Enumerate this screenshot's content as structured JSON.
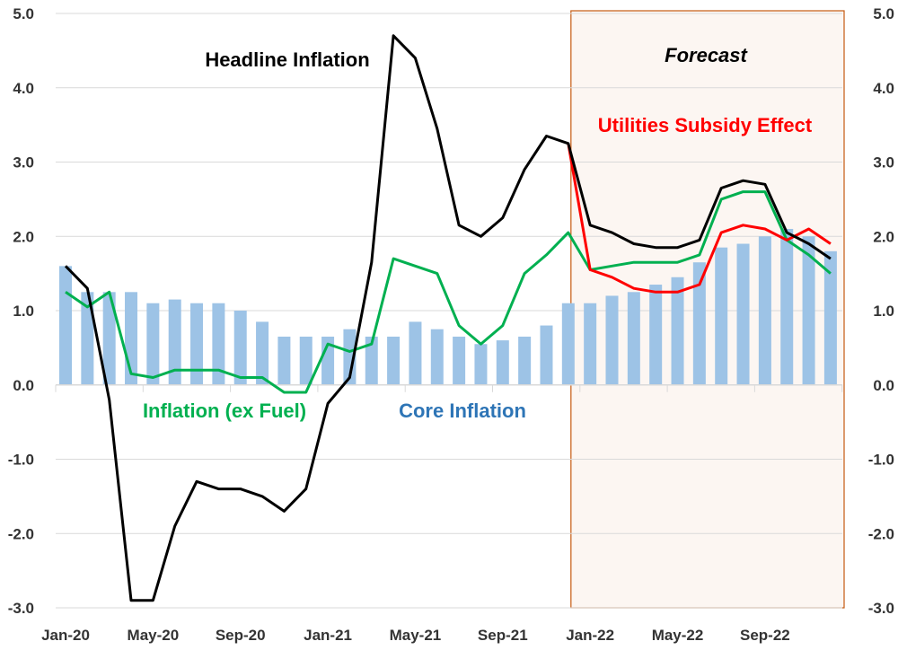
{
  "chart_data": {
    "type": "bar+line",
    "title": "",
    "ylim": [
      -3,
      5
    ],
    "yticks": [
      "5.0",
      "4.0",
      "3.0",
      "2.0",
      "1.0",
      "0.0",
      "-1.0",
      "-2.0",
      "-3.0"
    ],
    "ytick_values": [
      5,
      4,
      3,
      2,
      1,
      0,
      -1,
      -2,
      -3
    ],
    "xtick_labels": [
      "Jan-20",
      "May-20",
      "Sep-20",
      "Jan-21",
      "May-21",
      "Sep-21",
      "Jan-22",
      "May-22",
      "Sep-22"
    ],
    "xtick_index": [
      0,
      4,
      8,
      12,
      16,
      20,
      24,
      28,
      32
    ],
    "months": 36,
    "forecast_start_index": 23,
    "forecast_label": "Forecast",
    "series": [
      {
        "name": "Core Inflation",
        "type": "bar",
        "color": "#9dc3e6",
        "label_color": "#2e75b6",
        "values": [
          1.6,
          1.25,
          1.25,
          1.25,
          1.1,
          1.15,
          1.1,
          1.1,
          1.0,
          0.85,
          0.65,
          0.65,
          0.65,
          0.75,
          0.65,
          0.65,
          0.85,
          0.75,
          0.65,
          0.55,
          0.6,
          0.65,
          0.8,
          1.1,
          1.1,
          1.2,
          1.25,
          1.35,
          1.45,
          1.65,
          1.85,
          1.9,
          2.0,
          2.1,
          2.0,
          1.8
        ]
      },
      {
        "name": "Headline Inflation",
        "type": "line",
        "color": "#000000",
        "label_color": "#000000",
        "values": [
          1.6,
          1.3,
          -0.2,
          -2.9,
          -2.9,
          -1.9,
          -1.3,
          -1.4,
          -1.4,
          -1.5,
          -1.7,
          -1.4,
          -0.25,
          0.1,
          1.65,
          4.7,
          4.4,
          3.45,
          2.15,
          2.0,
          2.25,
          2.9,
          3.35,
          3.25,
          2.15,
          2.05,
          1.9,
          1.85,
          1.85,
          1.95,
          2.65,
          2.75,
          2.7,
          2.05,
          1.9,
          1.7
        ]
      },
      {
        "name": "Inflation (ex Fuel)",
        "type": "line",
        "color": "#00b050",
        "label_color": "#00b050",
        "values": [
          1.25,
          1.05,
          1.25,
          0.15,
          0.1,
          0.2,
          0.2,
          0.2,
          0.1,
          0.1,
          -0.1,
          -0.1,
          0.55,
          0.45,
          0.55,
          1.7,
          1.6,
          1.5,
          0.8,
          0.55,
          0.8,
          1.5,
          1.75,
          2.05,
          1.55,
          1.6,
          1.65,
          1.65,
          1.65,
          1.75,
          2.5,
          2.6,
          2.6,
          1.95,
          1.75,
          1.5
        ]
      },
      {
        "name": "Utilities Subsidy Effect",
        "type": "line",
        "color": "#ff0000",
        "label_color": "#ff0000",
        "values": [
          null,
          null,
          null,
          null,
          null,
          null,
          null,
          null,
          null,
          null,
          null,
          null,
          null,
          null,
          null,
          null,
          null,
          null,
          null,
          null,
          null,
          null,
          null,
          3.25,
          1.55,
          1.45,
          1.3,
          1.25,
          1.25,
          1.35,
          2.05,
          2.15,
          2.1,
          1.95,
          2.1,
          1.9
        ]
      }
    ]
  }
}
